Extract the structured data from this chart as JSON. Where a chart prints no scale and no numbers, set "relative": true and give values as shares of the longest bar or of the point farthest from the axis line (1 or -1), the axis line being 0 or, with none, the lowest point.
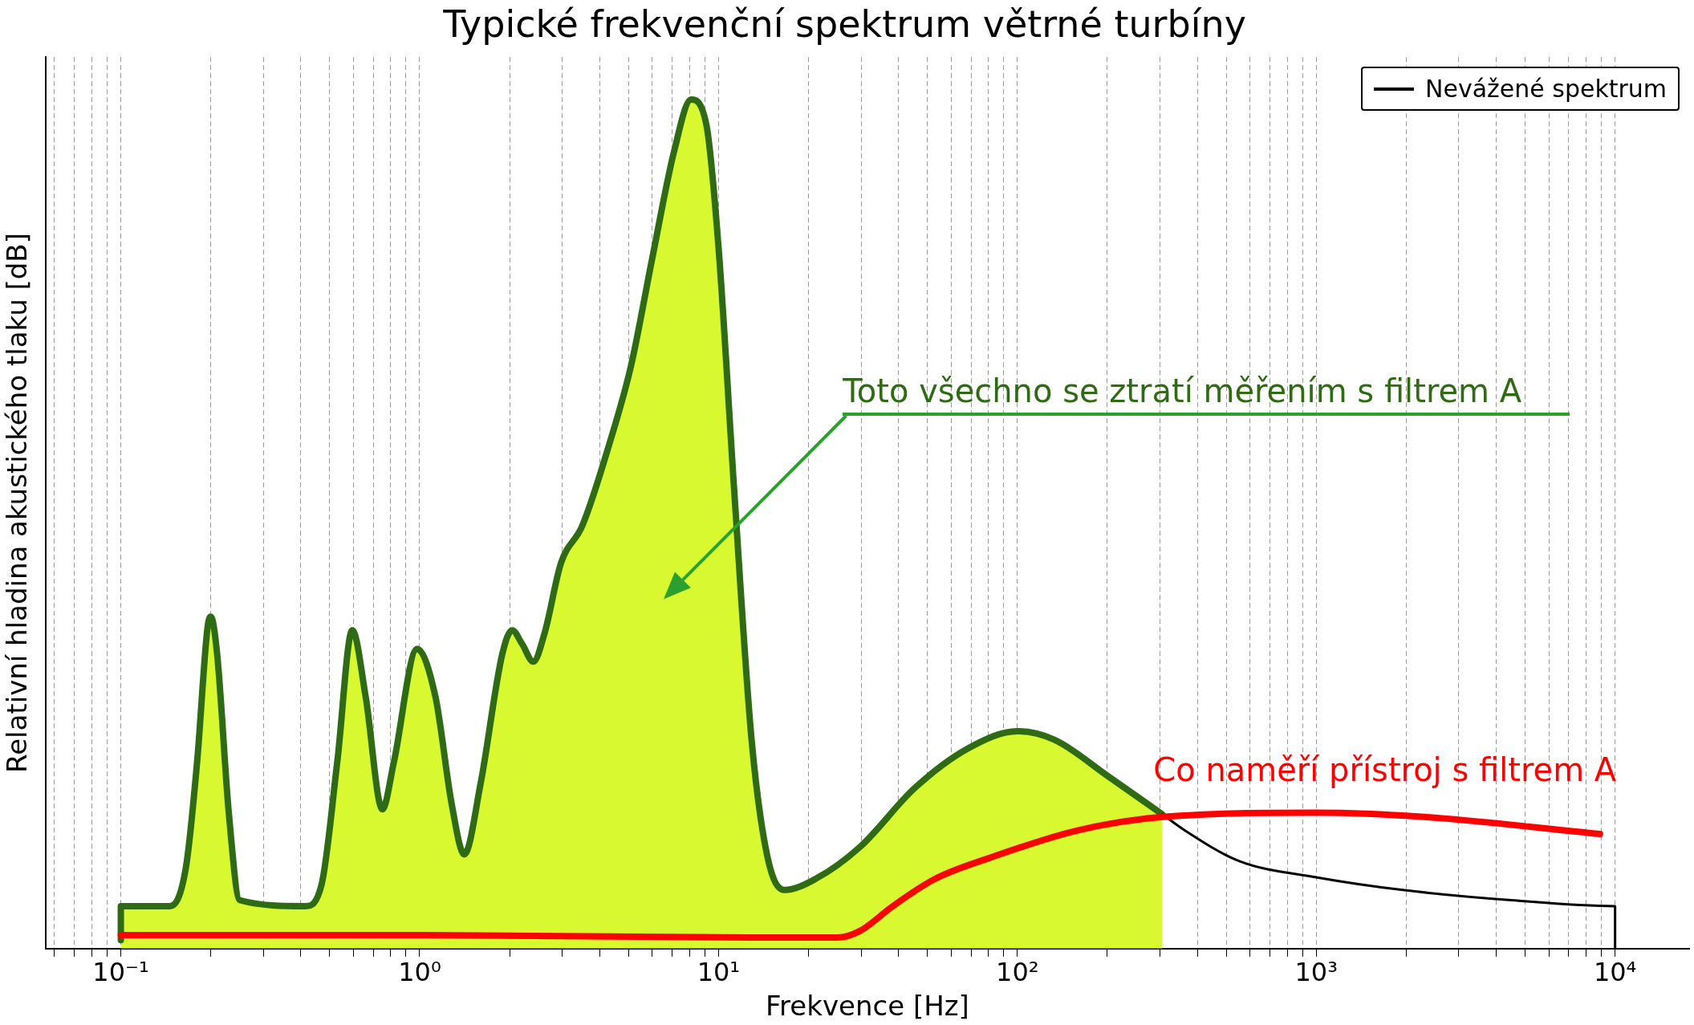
{
  "chart_data": {
    "type": "line",
    "title": "Typické frekvenční spektrum větrné turbíny",
    "xlabel": "Frekvence [Hz]",
    "ylabel": "Relativní hladina akustického tlaku [dB]",
    "relative": true,
    "log": "x",
    "grid": "x",
    "legend": "top right",
    "xlim": [
      0.056,
      17700
    ],
    "xticks": [
      {
        "value": 0.06,
        "label": null
      },
      {
        "value": 0.07,
        "label": null
      },
      {
        "value": 0.08,
        "label": null
      },
      {
        "value": 0.09,
        "label": null
      },
      {
        "value": 0.1,
        "label": "10⁻¹"
      },
      {
        "value": 0.2,
        "label": null
      },
      {
        "value": 0.3,
        "label": null
      },
      {
        "value": 0.4,
        "label": null
      },
      {
        "value": 0.5,
        "label": null
      },
      {
        "value": 0.6,
        "label": null
      },
      {
        "value": 0.7,
        "label": null
      },
      {
        "value": 0.8,
        "label": null
      },
      {
        "value": 0.9,
        "label": null
      },
      {
        "value": 1,
        "label": "10⁰"
      },
      {
        "value": 2,
        "label": null
      },
      {
        "value": 3,
        "label": null
      },
      {
        "value": 4,
        "label": null
      },
      {
        "value": 5,
        "label": null
      },
      {
        "value": 6,
        "label": null
      },
      {
        "value": 7,
        "label": null
      },
      {
        "value": 8,
        "label": null
      },
      {
        "value": 9,
        "label": null
      },
      {
        "value": 10,
        "label": "10¹"
      },
      {
        "value": 20,
        "label": null
      },
      {
        "value": 30,
        "label": null
      },
      {
        "value": 40,
        "label": null
      },
      {
        "value": 50,
        "label": null
      },
      {
        "value": 60,
        "label": null
      },
      {
        "value": 70,
        "label": null
      },
      {
        "value": 80,
        "label": null
      },
      {
        "value": 90,
        "label": null
      },
      {
        "value": 100,
        "label": "10²"
      },
      {
        "value": 200,
        "label": null
      },
      {
        "value": 300,
        "label": null
      },
      {
        "value": 400,
        "label": null
      },
      {
        "value": 500,
        "label": null
      },
      {
        "value": 600,
        "label": null
      },
      {
        "value": 700,
        "label": null
      },
      {
        "value": 800,
        "label": null
      },
      {
        "value": 900,
        "label": null
      },
      {
        "value": 1000,
        "label": "10³"
      },
      {
        "value": 2000,
        "label": null
      },
      {
        "value": 3000,
        "label": null
      },
      {
        "value": 4000,
        "label": null
      },
      {
        "value": 5000,
        "label": null
      },
      {
        "value": 6000,
        "label": null
      },
      {
        "value": 7000,
        "label": null
      },
      {
        "value": 8000,
        "label": null
      },
      {
        "value": 9000,
        "label": null
      },
      {
        "value": 10000,
        "label": "10⁴"
      }
    ],
    "series": [
      {
        "type": "area",
        "color": "#d8f92f",
        "x": [
          0.1,
          0.146,
          0.165,
          0.18,
          0.195,
          0.2,
          0.21,
          0.23,
          0.25,
          0.415,
          0.47,
          0.53,
          0.595,
          0.66,
          0.75,
          0.82,
          0.98,
          1.13,
          1.28,
          1.41,
          1.6,
          1.89,
          2.04,
          2.2,
          2.4,
          2.62,
          2.97,
          3.5,
          4.3,
          5.1,
          6.0,
          7.1,
          8.1,
          9.1,
          10,
          11.3,
          12.9,
          14.6,
          16.6,
          21.1,
          29.8,
          45.3,
          68.5,
          100,
          133,
          203,
          306
        ],
        "values": [
          0.05,
          0.05,
          0.095,
          0.22,
          0.378,
          0.391,
          0.347,
          0.158,
          0.057,
          0.05,
          0.076,
          0.22,
          0.375,
          0.296,
          0.164,
          0.22,
          0.353,
          0.296,
          0.17,
          0.111,
          0.195,
          0.347,
          0.375,
          0.359,
          0.338,
          0.372,
          0.454,
          0.498,
          0.593,
          0.687,
          0.813,
          0.939,
          1.0,
          0.971,
          0.826,
          0.536,
          0.246,
          0.107,
          0.069,
          0.082,
          0.12,
          0.189,
          0.236,
          0.256,
          0.246,
          0.202,
          0.158
        ]
      },
      {
        "color": "#2f6b14",
        "x": [
          0.1,
          0.1,
          0.146,
          0.165,
          0.18,
          0.195,
          0.2,
          0.21,
          0.23,
          0.25,
          0.415,
          0.47,
          0.53,
          0.595,
          0.66,
          0.75,
          0.82,
          0.98,
          1.13,
          1.28,
          1.41,
          1.6,
          1.89,
          2.04,
          2.2,
          2.4,
          2.62,
          2.97,
          3.5,
          4.3,
          5.1,
          6.0,
          7.1,
          8.1,
          9.1,
          10,
          11.3,
          12.9,
          14.6,
          16.6,
          21.1,
          29.8,
          45.3,
          68.5,
          100,
          133,
          203,
          306
        ],
        "values": [
          0.01,
          0.05,
          0.05,
          0.095,
          0.22,
          0.378,
          0.391,
          0.347,
          0.158,
          0.057,
          0.05,
          0.076,
          0.22,
          0.375,
          0.296,
          0.164,
          0.22,
          0.353,
          0.296,
          0.17,
          0.111,
          0.195,
          0.347,
          0.375,
          0.359,
          0.338,
          0.372,
          0.454,
          0.498,
          0.593,
          0.687,
          0.813,
          0.939,
          1.0,
          0.971,
          0.826,
          0.536,
          0.246,
          0.107,
          0.069,
          0.082,
          0.12,
          0.189,
          0.236,
          0.256,
          0.246,
          0.202,
          0.158
        ]
      },
      {
        "name": "Nevážené spektrum",
        "color": "#000000",
        "x": [
          306,
          364,
          553,
          1000,
          1950,
          4500,
          10000,
          10000
        ],
        "values": [
          0.158,
          0.139,
          0.103,
          0.084,
          0.069,
          0.057,
          0.05,
          0
        ]
      },
      {
        "color": "#ff0000",
        "x": [
          0.1,
          1.04,
          13,
          25,
          29.8,
          38.3,
          53,
          81,
          158,
          306,
          1000,
          2300,
          8900
        ],
        "values": [
          0.016,
          0.016,
          0.013,
          0.013,
          0.021,
          0.05,
          0.082,
          0.107,
          0.139,
          0.155,
          0.16,
          0.155,
          0.135
        ]
      }
    ],
    "annotations": [
      "Toto všechno se ztratí měřením s filtrem A",
      "Co naměří přístroj s filtrem A"
    ]
  }
}
